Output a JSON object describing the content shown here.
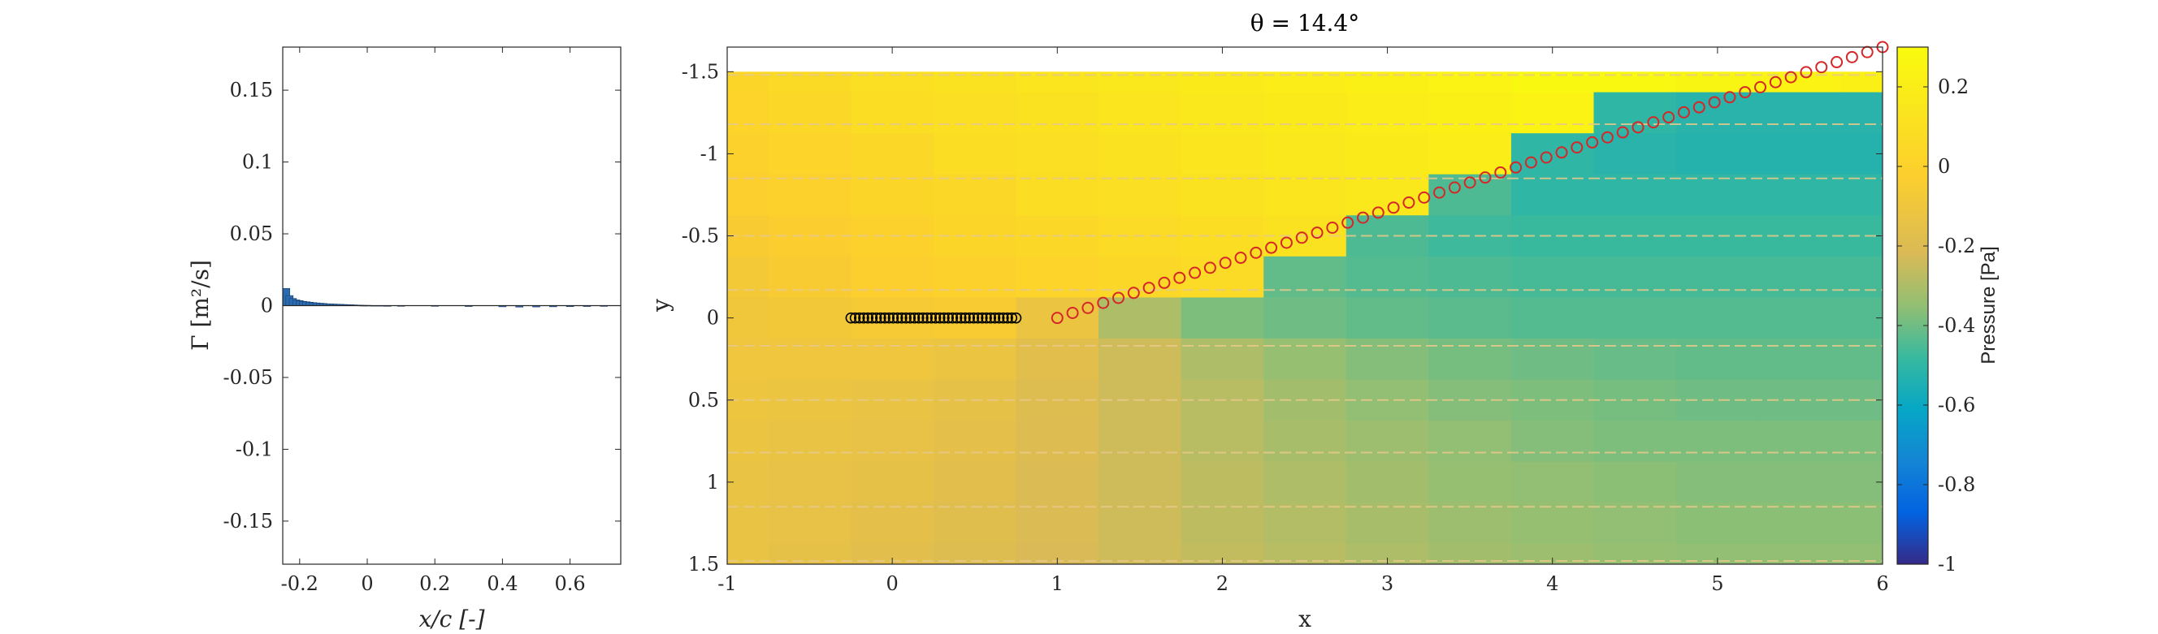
{
  "chart_data": [
    {
      "type": "bar",
      "xlabel": "x/c [-]",
      "ylabel": "Γ [m²/s]",
      "xlim": [
        -0.25,
        0.75
      ],
      "ylim": [
        -0.18,
        0.18
      ],
      "xticks": [
        -0.2,
        0,
        0.2,
        0.4,
        0.6
      ],
      "xtick_labels": [
        "-0.2",
        "0",
        "0.2",
        "0.4",
        "0.6"
      ],
      "yticks": [
        0.15,
        0.1,
        0.05,
        0,
        -0.05,
        -0.1,
        -0.15
      ],
      "ytick_labels": [
        "0.15",
        "0.1",
        "0.05",
        "0",
        "-0.05",
        "-0.1",
        "-0.15"
      ],
      "bar_color": "#2b6cb0",
      "x": [
        -0.24,
        -0.23,
        -0.22,
        -0.21,
        -0.2,
        -0.19,
        -0.18,
        -0.17,
        -0.16,
        -0.15,
        -0.14,
        -0.13,
        -0.12,
        -0.11,
        -0.1,
        -0.09,
        -0.08,
        -0.07,
        -0.06,
        -0.05,
        -0.04,
        -0.03,
        -0.02,
        -0.01,
        0.0,
        0.02,
        0.04,
        0.06,
        0.1,
        0.2,
        0.3,
        0.4,
        0.45,
        0.5,
        0.55,
        0.6,
        0.65,
        0.7
      ],
      "values": [
        0.012,
        0.007,
        0.005,
        0.004,
        0.0035,
        0.003,
        0.0027,
        0.0024,
        0.0021,
        0.0019,
        0.0017,
        0.0015,
        0.0013,
        0.0012,
        0.0011,
        0.001,
        0.0009,
        0.0008,
        0.0007,
        0.0006,
        0.0005,
        0.0004,
        0.0003,
        0.0002,
        0.0002,
        0.0001,
        0.0001,
        0.0,
        -0.0002,
        -0.0004,
        -0.0006,
        -0.0008,
        -0.001,
        -0.0009,
        -0.0008,
        -0.0007,
        -0.0006,
        -0.0005
      ]
    },
    {
      "type": "heatmap",
      "title": "θ = 14.4°",
      "xlabel": "x",
      "ylabel": "y",
      "xlim": [
        -1,
        6
      ],
      "ylim": [
        -1.65,
        1.5
      ],
      "y_reversed": true,
      "xticks": [
        -1,
        0,
        1,
        2,
        3,
        4,
        5,
        6
      ],
      "xtick_labels": [
        "-1",
        "0",
        "1",
        "2",
        "3",
        "4",
        "5",
        "6"
      ],
      "yticks": [
        -1.5,
        -1,
        -0.5,
        0,
        0.5,
        1,
        1.5
      ],
      "ytick_labels": [
        "-1.5",
        "-1",
        "-0.5",
        "0",
        "0.5",
        "1",
        "1.5"
      ],
      "field_extent": {
        "x": [
          -1,
          6
        ],
        "y": [
          -1.5,
          1.5
        ]
      },
      "field_x": [
        -1,
        -0.5,
        0,
        0.5,
        1,
        1.5,
        2,
        2.5,
        3,
        3.5,
        4,
        4.5,
        5,
        5.5,
        6
      ],
      "field_y": [
        -1.5,
        -1.25,
        -1,
        -0.75,
        -0.5,
        -0.25,
        0,
        0.25,
        0.5,
        0.75,
        1,
        1.25,
        1.5
      ],
      "pressure": [
        [
          0.03,
          0.06,
          0.1,
          0.12,
          0.14,
          0.16,
          0.18,
          0.2,
          0.22,
          0.24,
          0.28,
          0.28,
          0.26,
          0.24,
          0.22
        ],
        [
          0.02,
          0.04,
          0.08,
          0.1,
          0.12,
          0.14,
          0.16,
          0.18,
          0.2,
          0.22,
          0.24,
          -0.5,
          -0.52,
          -0.52,
          -0.52
        ],
        [
          0.0,
          0.02,
          0.05,
          0.08,
          0.1,
          0.12,
          0.14,
          0.16,
          0.18,
          0.2,
          -0.5,
          -0.52,
          -0.53,
          -0.53,
          -0.53
        ],
        [
          -0.02,
          0.0,
          0.03,
          0.05,
          0.08,
          0.1,
          0.12,
          0.14,
          0.16,
          -0.45,
          -0.5,
          -0.5,
          -0.5,
          -0.5,
          -0.5
        ],
        [
          -0.05,
          -0.03,
          0.0,
          0.03,
          0.05,
          0.07,
          0.09,
          0.12,
          -0.45,
          -0.47,
          -0.48,
          -0.48,
          -0.48,
          -0.48,
          -0.48
        ],
        [
          -0.07,
          -0.05,
          -0.02,
          0.0,
          0.02,
          0.05,
          0.07,
          -0.42,
          -0.44,
          -0.45,
          -0.46,
          -0.46,
          -0.46,
          -0.46,
          -0.46
        ],
        [
          -0.09,
          -0.08,
          -0.06,
          -0.05,
          -0.12,
          -0.3,
          -0.38,
          -0.4,
          -0.42,
          -0.43,
          -0.44,
          -0.44,
          -0.44,
          -0.44,
          -0.44
        ],
        [
          -0.1,
          -0.1,
          -0.1,
          -0.12,
          -0.17,
          -0.24,
          -0.3,
          -0.34,
          -0.37,
          -0.39,
          -0.4,
          -0.41,
          -0.42,
          -0.42,
          -0.42
        ],
        [
          -0.11,
          -0.12,
          -0.13,
          -0.15,
          -0.19,
          -0.24,
          -0.28,
          -0.32,
          -0.35,
          -0.37,
          -0.38,
          -0.39,
          -0.4,
          -0.4,
          -0.4
        ],
        [
          -0.12,
          -0.13,
          -0.14,
          -0.16,
          -0.2,
          -0.24,
          -0.28,
          -0.31,
          -0.33,
          -0.35,
          -0.37,
          -0.38,
          -0.38,
          -0.38,
          -0.38
        ],
        [
          -0.13,
          -0.14,
          -0.15,
          -0.17,
          -0.21,
          -0.24,
          -0.27,
          -0.3,
          -0.32,
          -0.34,
          -0.35,
          -0.36,
          -0.37,
          -0.37,
          -0.37
        ],
        [
          -0.13,
          -0.14,
          -0.16,
          -0.18,
          -0.21,
          -0.24,
          -0.27,
          -0.29,
          -0.31,
          -0.33,
          -0.34,
          -0.35,
          -0.36,
          -0.36,
          -0.36
        ],
        [
          -0.13,
          -0.15,
          -0.17,
          -0.19,
          -0.22,
          -0.24,
          -0.26,
          -0.28,
          -0.3,
          -0.32,
          -0.33,
          -0.34,
          -0.35,
          -0.35,
          -0.35
        ]
      ],
      "colorbar": {
        "label": "Pressure [Pa]",
        "limits": [
          -1,
          0.3
        ],
        "ticks": [
          0.2,
          0,
          -0.2,
          -0.4,
          -0.6,
          -0.8,
          -1
        ],
        "tick_labels": [
          "0.2",
          "0",
          "-0.2",
          "-0.4",
          "-0.6",
          "-0.8",
          "-1"
        ],
        "colormap": "parula"
      },
      "streamline_y": [
        -1.48,
        -1.18,
        -0.85,
        -0.5,
        -0.17,
        0.17,
        0.5,
        0.82,
        1.15,
        1.48
      ],
      "streamline_color": "#e8c98a",
      "airfoil_color": "#000000",
      "wake_color": "#d62728",
      "airfoil_points": {
        "x_start": -0.25,
        "x_end": 0.75,
        "y": 0,
        "count": 40
      },
      "wake_points": {
        "x_start": 1.0,
        "x_end": 6.0,
        "y_start": 0.0,
        "y_end": -1.65,
        "count": 55
      }
    }
  ]
}
